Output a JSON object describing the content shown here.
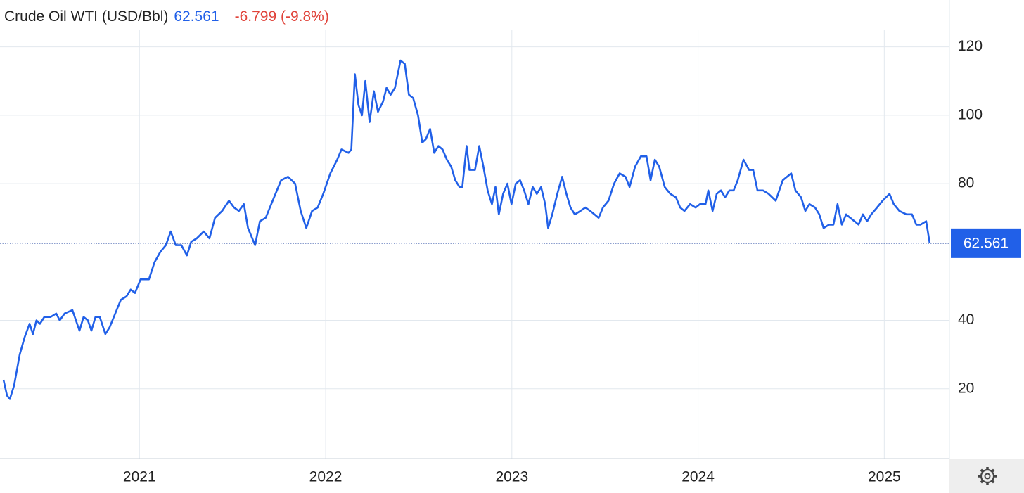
{
  "chart_data": {
    "type": "line",
    "title": "Crude Oil WTI (USD/Bbl)",
    "change_text": "-6.799 (-9.8%)",
    "xlim": [
      2020.27,
      2025.35
    ],
    "xticks": [
      2021,
      2022,
      2023,
      2024,
      2025
    ],
    "ylim": [
      0,
      130
    ],
    "yticks": [
      20,
      40,
      80,
      100,
      120
    ],
    "grid": true,
    "series": [
      {
        "name": "Crude Oil WTI",
        "color": "#2160e8",
        "x": [
          2020.27,
          2020.289,
          2020.304,
          2020.327,
          2020.357,
          2020.383,
          2020.41,
          2020.428,
          2020.447,
          2020.466,
          2020.489,
          2020.523,
          2020.553,
          2020.572,
          2020.598,
          2020.64,
          2020.678,
          2020.7,
          2020.723,
          2020.742,
          2020.764,
          2020.787,
          2020.817,
          2020.84,
          2020.87,
          2020.9,
          2020.93,
          2020.953,
          2020.976,
          2021.006,
          2021.051,
          2021.081,
          2021.112,
          2021.142,
          2021.168,
          2021.195,
          2021.225,
          2021.255,
          2021.278,
          2021.308,
          2021.345,
          2021.376,
          2021.406,
          2021.444,
          2021.481,
          2021.508,
          2021.534,
          2021.561,
          2021.583,
          2021.621,
          2021.647,
          2021.678,
          2021.723,
          2021.761,
          2021.798,
          2021.836,
          2021.866,
          2021.896,
          2021.927,
          2021.957,
          2021.987,
          2022.025,
          2022.062,
          2022.085,
          2022.123,
          2022.138,
          2022.157,
          2022.176,
          2022.195,
          2022.213,
          2022.236,
          2022.259,
          2022.281,
          2022.308,
          2022.327,
          2022.349,
          2022.372,
          2022.402,
          2022.425,
          2022.447,
          2022.47,
          2022.496,
          2022.519,
          2022.538,
          2022.561,
          2022.583,
          2022.606,
          2022.628,
          2022.651,
          2022.674,
          2022.696,
          2022.719,
          2022.734,
          2022.757,
          2022.772,
          2022.802,
          2022.825,
          2022.847,
          2022.87,
          2022.893,
          2022.912,
          2022.93,
          2022.953,
          2022.976,
          2022.998,
          2023.021,
          2023.044,
          2023.066,
          2023.089,
          2023.112,
          2023.134,
          2023.157,
          2023.179,
          2023.195,
          2023.217,
          2023.244,
          2023.27,
          2023.293,
          2023.315,
          2023.338,
          2023.368,
          2023.395,
          2023.421,
          2023.444,
          2023.466,
          2023.489,
          2023.519,
          2023.549,
          2023.579,
          2023.61,
          2023.632,
          2023.662,
          2023.693,
          2023.723,
          2023.745,
          2023.768,
          2023.791,
          2023.821,
          2023.851,
          2023.881,
          2023.904,
          2023.927,
          2023.957,
          2023.987,
          2024.01,
          2024.04,
          2024.055,
          2024.078,
          2024.1,
          2024.123,
          2024.145,
          2024.168,
          2024.191,
          2024.213,
          2024.244,
          2024.274,
          2024.296,
          2024.319,
          2024.349,
          2024.379,
          2024.417,
          2024.455,
          2024.5,
          2024.523,
          2024.553,
          2024.576,
          2024.598,
          2024.628,
          2024.651,
          2024.674,
          2024.704,
          2024.727,
          2024.749,
          2024.772,
          2024.795,
          2024.817,
          2024.84,
          2024.862,
          2024.885,
          2024.908,
          2024.93,
          2024.961,
          2024.991,
          2025.028,
          2025.051,
          2025.081,
          2025.119,
          2025.149,
          2025.172,
          2025.195,
          2025.225,
          2025.244
        ],
        "values": [
          22.6,
          18,
          17,
          21,
          30,
          35,
          39,
          36,
          40,
          39,
          41,
          41,
          42,
          40,
          42,
          43,
          37,
          41,
          40,
          37,
          41,
          41,
          36,
          38,
          42,
          46,
          47,
          49,
          48,
          52,
          52,
          57,
          60,
          62,
          66,
          62,
          62,
          59,
          63,
          64,
          66,
          64,
          70,
          72,
          75,
          73,
          72,
          74,
          67,
          62,
          69,
          70,
          76,
          81,
          82,
          80,
          72,
          67,
          72,
          73,
          77,
          83,
          87,
          90,
          89,
          90,
          112,
          103,
          100,
          110,
          98,
          107,
          101,
          104,
          108,
          106,
          108,
          116,
          115,
          106,
          105,
          100,
          92,
          93,
          96,
          89,
          91,
          90,
          87,
          85,
          81,
          79,
          79,
          91,
          84,
          84,
          91,
          85,
          78,
          74,
          79,
          71,
          77,
          80,
          74,
          80,
          81,
          78,
          74,
          79,
          77,
          79,
          74,
          67,
          71,
          77,
          82,
          77,
          73,
          71,
          72,
          73,
          72,
          71,
          70,
          73,
          75,
          80,
          83,
          82,
          79,
          85,
          88,
          88,
          81,
          87,
          85,
          79,
          77,
          76,
          73,
          72,
          74,
          73,
          74,
          74,
          78,
          72,
          77,
          78,
          76,
          78,
          78,
          81,
          87,
          84,
          84,
          78,
          78,
          77,
          75,
          81,
          83,
          78,
          76,
          72,
          74,
          73,
          71,
          67,
          68,
          68,
          74,
          68,
          71,
          70,
          69,
          68,
          71,
          69,
          71,
          73,
          75,
          77,
          74,
          72,
          71,
          71,
          68,
          68,
          69,
          62.561
        ]
      }
    ]
  }
}
